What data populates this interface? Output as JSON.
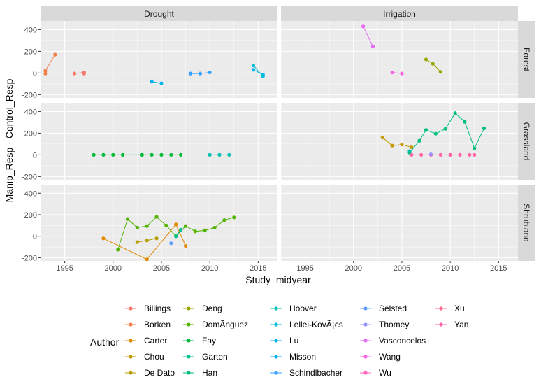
{
  "chart_data": {
    "type": "line",
    "xlabel": "Study_midyear",
    "ylabel": "Manip_Resp - Control_Resp",
    "xlim": [
      1992.5,
      2017
    ],
    "ylim": [
      -230,
      480
    ],
    "x_ticks": [
      1995,
      2000,
      2005,
      2010,
      2015
    ],
    "y_ticks": [
      -200,
      0,
      200,
      400
    ],
    "columns": [
      "Drought",
      "Irrigation"
    ],
    "rows": [
      "Forest",
      "Grassland",
      "Shrubland"
    ],
    "grid": true,
    "legend_title": "Author",
    "legend_position": "bottom",
    "authors": [
      {
        "name": "Billings",
        "color": "#F8766D"
      },
      {
        "name": "Borken",
        "color": "#F07F4A"
      },
      {
        "name": "Carter",
        "color": "#E38900"
      },
      {
        "name": "Chou",
        "color": "#C49A00"
      },
      {
        "name": "De Dato",
        "color": "#B79F00"
      },
      {
        "name": "Deng",
        "color": "#99A800"
      },
      {
        "name": "DomÃ­nguez",
        "color": "#53B400"
      },
      {
        "name": "Fay",
        "color": "#00BA38"
      },
      {
        "name": "Garten",
        "color": "#00C08B"
      },
      {
        "name": "Han",
        "color": "#00BF7D"
      },
      {
        "name": "Hoover",
        "color": "#00C0AF"
      },
      {
        "name": "Lellei-KovÃ¡cs",
        "color": "#00BCD8"
      },
      {
        "name": "Lu",
        "color": "#00B4EF"
      },
      {
        "name": "Misson",
        "color": "#00B0F6"
      },
      {
        "name": "Schindlbacher",
        "color": "#35A2FF"
      },
      {
        "name": "Selsted",
        "color": "#619CFF"
      },
      {
        "name": "Thomey",
        "color": "#9590FF"
      },
      {
        "name": "Vasconcelos",
        "color": "#E76BF3"
      },
      {
        "name": "Wang",
        "color": "#F564E3"
      },
      {
        "name": "Wu",
        "color": "#FF62BC"
      },
      {
        "name": "Xu",
        "color": "#FF6C91"
      },
      {
        "name": "Yan",
        "color": "#FF66A8"
      }
    ],
    "series": [
      {
        "author": "Borken",
        "col": 0,
        "row": 0,
        "x": [
          1993,
          1994
        ],
        "y": [
          20,
          170
        ]
      },
      {
        "author": "Borken",
        "col": 0,
        "row": 0,
        "x": [
          1993
        ],
        "y": [
          -5
        ]
      },
      {
        "author": "Billings",
        "col": 0,
        "row": 0,
        "x": [
          1996,
          1997
        ],
        "y": [
          -5,
          5
        ]
      },
      {
        "author": "Billings",
        "col": 0,
        "row": 0,
        "x": [
          1997
        ],
        "y": [
          -5
        ]
      },
      {
        "author": "Lu",
        "col": 0,
        "row": 0,
        "x": [
          2004,
          2005
        ],
        "y": [
          -80,
          -95
        ]
      },
      {
        "author": "Schindlbacher",
        "col": 0,
        "row": 0,
        "x": [
          2008,
          2009,
          2010
        ],
        "y": [
          -5,
          -5,
          5
        ]
      },
      {
        "author": "Lu",
        "col": 0,
        "row": 0,
        "x": [
          2014.5,
          2015.5
        ],
        "y": [
          30,
          -15
        ]
      },
      {
        "author": "Lellei-KovÃ¡cs",
        "col": 0,
        "row": 0,
        "x": [
          2014.5,
          2015.5
        ],
        "y": [
          70,
          -30
        ]
      },
      {
        "author": "Vasconcelos",
        "col": 1,
        "row": 0,
        "x": [
          2001,
          2002
        ],
        "y": [
          430,
          245
        ]
      },
      {
        "author": "Wang",
        "col": 1,
        "row": 0,
        "x": [
          2004,
          2005
        ],
        "y": [
          5,
          -5
        ]
      },
      {
        "author": "Deng",
        "col": 1,
        "row": 0,
        "x": [
          2007.5,
          2008.2,
          2009
        ],
        "y": [
          125,
          85,
          10
        ]
      },
      {
        "author": "Fay",
        "col": 0,
        "row": 1,
        "x": [
          1998,
          1999,
          2000,
          2001,
          2003,
          2004,
          2005,
          2006,
          2007
        ],
        "y": [
          0,
          0,
          0,
          0,
          0,
          0,
          0,
          0,
          0
        ]
      },
      {
        "author": "Hoover",
        "col": 0,
        "row": 1,
        "x": [
          2010,
          2011,
          2012
        ],
        "y": [
          0,
          0,
          0
        ]
      },
      {
        "author": "Chou",
        "col": 1,
        "row": 1,
        "x": [
          2003,
          2004,
          2005,
          2006
        ],
        "y": [
          160,
          85,
          95,
          70
        ]
      },
      {
        "author": "Han",
        "col": 1,
        "row": 1,
        "x": [
          2005.8,
          2006.8,
          2007.5,
          2008.5,
          2009.5,
          2010.5,
          2011.5,
          2012.5,
          2013.5
        ],
        "y": [
          20,
          130,
          230,
          195,
          240,
          385,
          305,
          60,
          245
        ]
      },
      {
        "author": "Hoover",
        "col": 1,
        "row": 1,
        "x": [
          2005.8
        ],
        "y": [
          35
        ]
      },
      {
        "author": "Yan",
        "col": 1,
        "row": 1,
        "x": [
          2006,
          2007,
          2008,
          2009,
          2010,
          2011,
          2012,
          2012.5
        ],
        "y": [
          0,
          0,
          0,
          0,
          0,
          0,
          0,
          0
        ]
      },
      {
        "author": "Thomey",
        "col": 1,
        "row": 1,
        "x": [
          2008
        ],
        "y": [
          5
        ]
      },
      {
        "author": "Carter",
        "col": 0,
        "row": 2,
        "x": [
          1999,
          2003.5,
          2006.5,
          2007.5
        ],
        "y": [
          -20,
          -215,
          110,
          -90
        ]
      },
      {
        "author": "De Dato",
        "col": 0,
        "row": 2,
        "x": [
          2002.5,
          2003.5,
          2004.5
        ],
        "y": [
          -55,
          -40,
          -20
        ]
      },
      {
        "author": "DomÃ­nguez",
        "col": 0,
        "row": 2,
        "x": [
          2000.5,
          2001.5,
          2002.5,
          2003.5,
          2004.5,
          2005.5,
          2006.5,
          2007.5,
          2008.5,
          2009.5,
          2010.5,
          2011.5,
          2012.5
        ],
        "y": [
          -125,
          160,
          80,
          95,
          180,
          100,
          0,
          95,
          45,
          55,
          80,
          150,
          175
        ]
      },
      {
        "author": "Garten",
        "col": 0,
        "row": 2,
        "x": [
          2006.5,
          2007
        ],
        "y": [
          0,
          60
        ]
      },
      {
        "author": "Selsted",
        "col": 0,
        "row": 2,
        "x": [
          2006
        ],
        "y": [
          -65
        ]
      }
    ]
  }
}
